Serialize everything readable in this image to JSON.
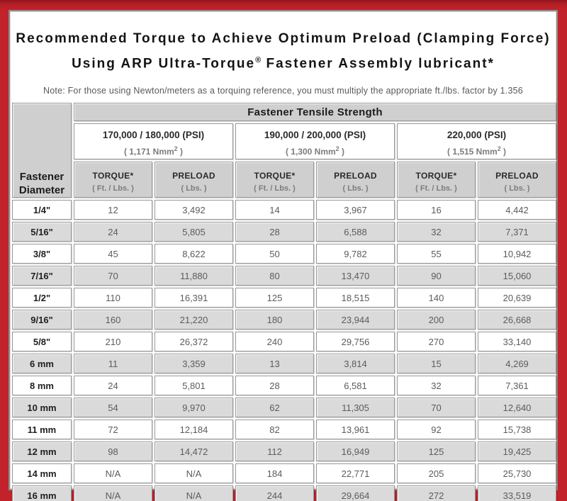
{
  "title": {
    "line1": "Recommended Torque to Achieve Optimum Preload (Clamping Force)",
    "line2_pre": "Using ARP Ultra-Torque",
    "line2_sup": "®",
    "line2_post": " Fastener Assembly lubricant*"
  },
  "note": "Note: For those using Newton/meters as a torquing reference, you must multiply the appropriate ft./lbs. factor by 1.356",
  "colors": {
    "frame_red": "#c2222a",
    "frame_red_dark": "#8e161c",
    "panel_border_grey": "#8d8d8d",
    "header_grey": "#cfcfcf",
    "row_grey": "#dadada",
    "value_text_grey": "#5c5c5c"
  },
  "table": {
    "tensile_header": "Fastener Tensile Strength",
    "diameter_header_line1": "Fastener",
    "diameter_header_line2": "Diameter",
    "groups": [
      {
        "psi": "170,000 / 180,000 (PSI)",
        "nmm_pre": "( 1,171 Nmm",
        "nmm_sup": "2",
        "nmm_post": " )"
      },
      {
        "psi": "190,000 / 200,000 (PSI)",
        "nmm_pre": "( 1,300 Nmm",
        "nmm_sup": "2",
        "nmm_post": " )"
      },
      {
        "psi": "220,000 (PSI)",
        "nmm_pre": "( 1,515 Nmm",
        "nmm_sup": "2",
        "nmm_post": " )"
      }
    ],
    "col_headers": {
      "torque": "TORQUE*",
      "torque_unit": "( Ft. / Lbs. )",
      "preload": "PRELOAD",
      "preload_unit": "( Lbs. )"
    }
  },
  "chart_data": {
    "type": "table",
    "title": "Recommended Torque to Achieve Optimum Preload (Clamping Force) Using ARP Ultra-Torque Fastener Assembly lubricant",
    "columns": [
      "Fastener Diameter",
      "Torque Ft./Lbs. (170,000/180,000 PSI)",
      "Preload Lbs. (170,000/180,000 PSI)",
      "Torque Ft./Lbs. (190,000/200,000 PSI)",
      "Preload Lbs. (190,000/200,000 PSI)",
      "Torque Ft./Lbs. (220,000 PSI)",
      "Preload Lbs. (220,000 PSI)"
    ],
    "rows": [
      [
        "1/4\"",
        "12",
        "3,492",
        "14",
        "3,967",
        "16",
        "4,442"
      ],
      [
        "5/16\"",
        "24",
        "5,805",
        "28",
        "6,588",
        "32",
        "7,371"
      ],
      [
        "3/8\"",
        "45",
        "8,622",
        "50",
        "9,782",
        "55",
        "10,942"
      ],
      [
        "7/16\"",
        "70",
        "11,880",
        "80",
        "13,470",
        "90",
        "15,060"
      ],
      [
        "1/2\"",
        "110",
        "16,391",
        "125",
        "18,515",
        "140",
        "20,639"
      ],
      [
        "9/16\"",
        "160",
        "21,220",
        "180",
        "23,944",
        "200",
        "26,668"
      ],
      [
        "5/8\"",
        "210",
        "26,372",
        "240",
        "29,756",
        "270",
        "33,140"
      ],
      [
        "6 mm",
        "11",
        "3,359",
        "13",
        "3,814",
        "15",
        "4,269"
      ],
      [
        "8 mm",
        "24",
        "5,801",
        "28",
        "6,581",
        "32",
        "7,361"
      ],
      [
        "10 mm",
        "54",
        "9,970",
        "62",
        "11,305",
        "70",
        "12,640"
      ],
      [
        "11 mm",
        "72",
        "12,184",
        "82",
        "13,961",
        "92",
        "15,738"
      ],
      [
        "12 mm",
        "98",
        "14,472",
        "112",
        "16,949",
        "125",
        "19,425"
      ],
      [
        "14 mm",
        "N/A",
        "N/A",
        "184",
        "22,771",
        "205",
        "25,730"
      ],
      [
        "16 mm",
        "N/A",
        "N/A",
        "244",
        "29,664",
        "272",
        "33,519"
      ]
    ]
  }
}
